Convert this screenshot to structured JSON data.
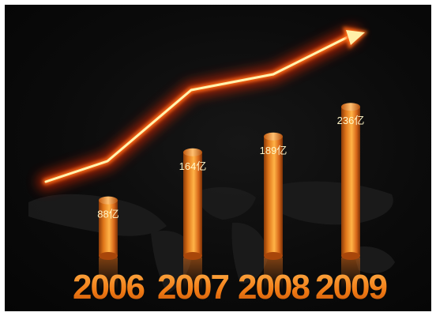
{
  "chart_data": {
    "type": "bar",
    "categories": [
      "2006",
      "2007",
      "2008",
      "2009"
    ],
    "values": [
      88,
      164,
      189,
      236
    ],
    "value_labels": [
      "88亿",
      "164亿",
      "189亿",
      "236亿"
    ],
    "title": "",
    "xlabel": "",
    "ylabel": "",
    "ylim": [
      0,
      250
    ],
    "grid": false,
    "legend": "none",
    "trend_arrow": true,
    "colors": {
      "bar": "#f08a1c",
      "bar_dark": "#a8460a",
      "year_text": "#ff8a1a",
      "arrow_core": "#fff4b0",
      "arrow_glow": "#ff3a0a",
      "background": "#0b0b0b"
    }
  }
}
